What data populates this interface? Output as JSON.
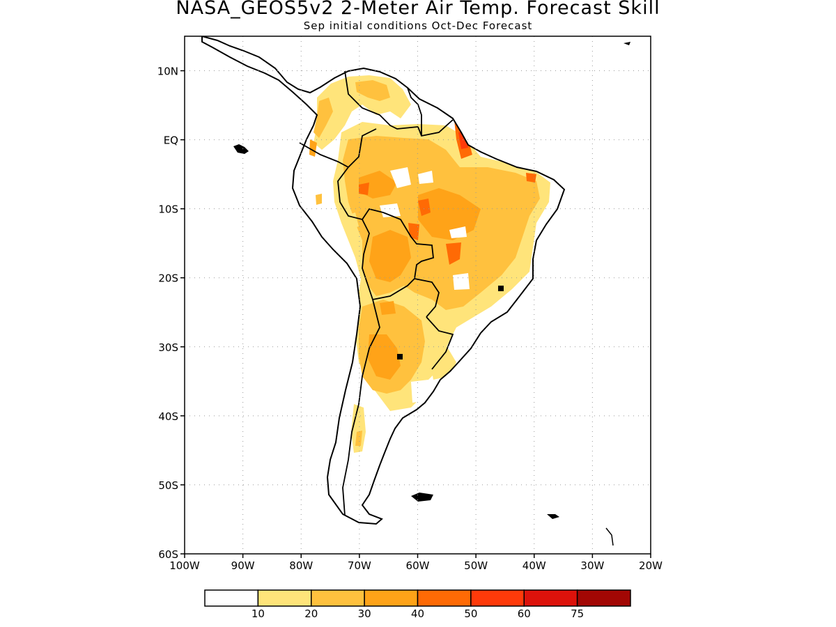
{
  "title": "NASA_GEOS5v2 2-Meter Air Temp. Forecast Skill",
  "subtitle": "Sep initial conditions  Oct-Dec Forecast",
  "map": {
    "region": "South America",
    "lon_range": [
      -100,
      -20
    ],
    "lat_range": [
      -60,
      15
    ],
    "lat_labels": [
      {
        "lat": 10,
        "text": "10N"
      },
      {
        "lat": 0,
        "text": "EQ"
      },
      {
        "lat": -10,
        "text": "10S"
      },
      {
        "lat": -20,
        "text": "20S"
      },
      {
        "lat": -30,
        "text": "30S"
      },
      {
        "lat": -40,
        "text": "40S"
      },
      {
        "lat": -50,
        "text": "50S"
      },
      {
        "lat": -60,
        "text": "60S"
      }
    ],
    "lon_labels": [
      {
        "lon": -100,
        "text": "100W"
      },
      {
        "lon": -90,
        "text": "90W"
      },
      {
        "lon": -80,
        "text": "80W"
      },
      {
        "lon": -70,
        "text": "70W"
      },
      {
        "lon": -60,
        "text": "60W"
      },
      {
        "lon": -50,
        "text": "50W"
      },
      {
        "lon": -40,
        "text": "40W"
      },
      {
        "lon": -30,
        "text": "30W"
      },
      {
        "lon": -20,
        "text": "20W"
      }
    ],
    "grid": "dotted"
  },
  "colorbar": {
    "labels": [
      "10",
      "20",
      "30",
      "40",
      "50",
      "60",
      "75"
    ],
    "colors": [
      "#ffffff",
      "#ffe47a",
      "#ffc13e",
      "#ffa318",
      "#ff6a05",
      "#ff3a0a",
      "#dc120b",
      "#a20704"
    ]
  }
}
